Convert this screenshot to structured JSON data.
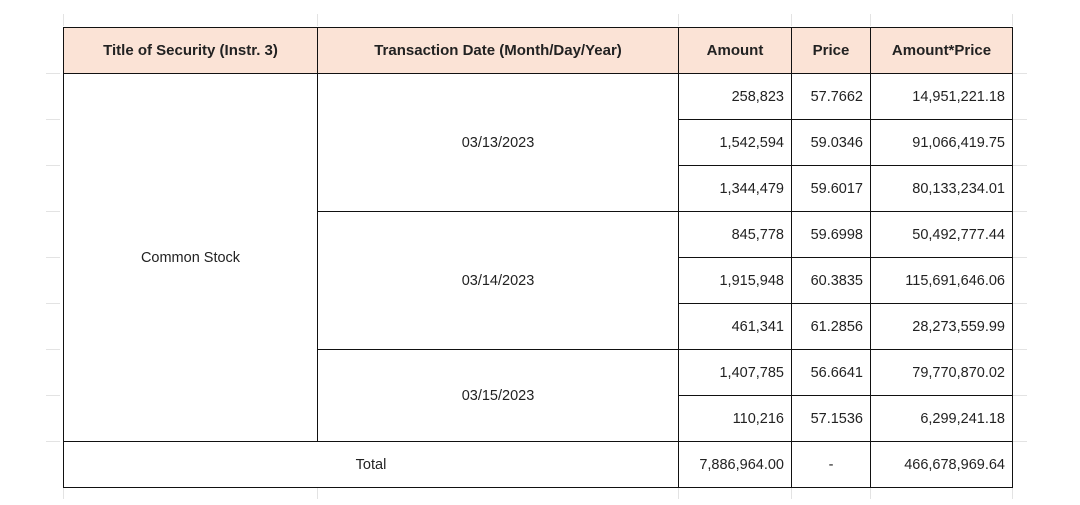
{
  "table": {
    "headers": {
      "title_of_security": "Title of Security (Instr. 3)",
      "transaction_date": "Transaction Date (Month/Day/Year)",
      "amount": "Amount",
      "price": "Price",
      "amount_price": "Amount*Price"
    },
    "security_title": "Common Stock",
    "groups": [
      {
        "date": "03/13/2023",
        "rows": [
          {
            "amount": "258,823",
            "price": "57.7662",
            "amount_price": "14,951,221.18"
          },
          {
            "amount": "1,542,594",
            "price": "59.0346",
            "amount_price": "91,066,419.75"
          },
          {
            "amount": "1,344,479",
            "price": "59.6017",
            "amount_price": "80,133,234.01"
          }
        ]
      },
      {
        "date": "03/14/2023",
        "rows": [
          {
            "amount": "845,778",
            "price": "59.6998",
            "amount_price": "50,492,777.44"
          },
          {
            "amount": "1,915,948",
            "price": "60.3835",
            "amount_price": "115,691,646.06"
          },
          {
            "amount": "461,341",
            "price": "61.2856",
            "amount_price": "28,273,559.99"
          }
        ]
      },
      {
        "date": "03/15/2023",
        "rows": [
          {
            "amount": "1,407,785",
            "price": "56.6641",
            "amount_price": "79,770,870.02"
          },
          {
            "amount": "110,216",
            "price": "57.1536",
            "amount_price": "6,299,241.18"
          }
        ]
      }
    ],
    "total": {
      "label": "Total",
      "amount": "7,886,964.00",
      "price": "-",
      "amount_price": "466,678,969.64"
    },
    "colors": {
      "header_background": "#fbe3d6",
      "border": "#111111"
    }
  }
}
